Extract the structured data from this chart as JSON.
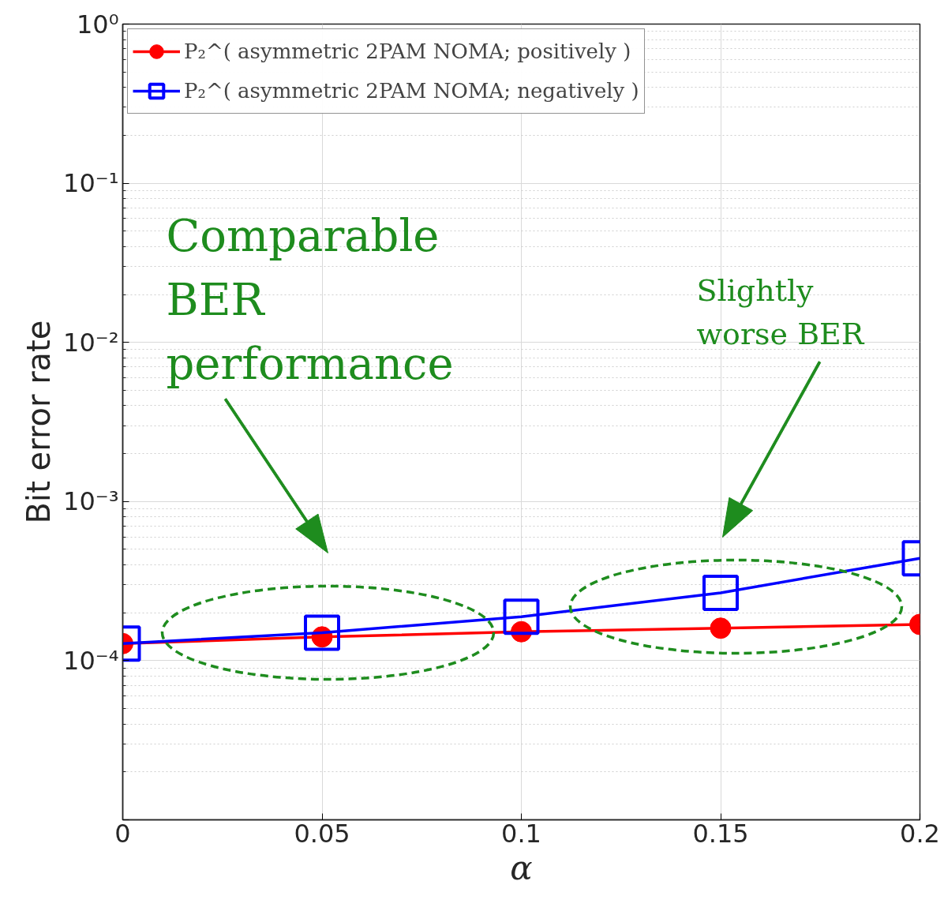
{
  "chart_data": {
    "type": "line",
    "xlabel": "α",
    "ylabel": "Bit error rate",
    "x": [
      0,
      0.05,
      0.1,
      0.15,
      0.2
    ],
    "series": [
      {
        "name": "P₂^( asymmetric 2PAM NOMA; positively )",
        "color": "#ff0000",
        "marker": "circle",
        "values": [
          0.000128,
          0.000141,
          0.000152,
          0.00016,
          0.000169
        ]
      },
      {
        "name": "P₂^( asymmetric 2PAM NOMA; negatively )",
        "color": "#0000ff",
        "marker": "square",
        "values": [
          0.000128,
          0.00015,
          0.000189,
          0.000267,
          0.00044
        ]
      }
    ],
    "xlim": [
      0,
      0.2
    ],
    "xticks": [
      0,
      0.05,
      0.1,
      0.15,
      0.2
    ],
    "ylim": [
      1e-05,
      1
    ],
    "yticks": [
      {
        "value": 1e-05,
        "label": null
      },
      {
        "value": 0.0001,
        "label": "10⁻⁴"
      },
      {
        "value": 0.001,
        "label": "10⁻³"
      },
      {
        "value": 0.01,
        "label": "10⁻²"
      },
      {
        "value": 0.1,
        "label": "10⁻¹"
      },
      {
        "value": 1,
        "label": "10⁰"
      }
    ],
    "log": "y",
    "grid": true,
    "legend": "top left",
    "line_style": "solid",
    "annotations": [
      "Comparable\nBER\nperformance",
      "Slightly\nworse BER"
    ]
  }
}
